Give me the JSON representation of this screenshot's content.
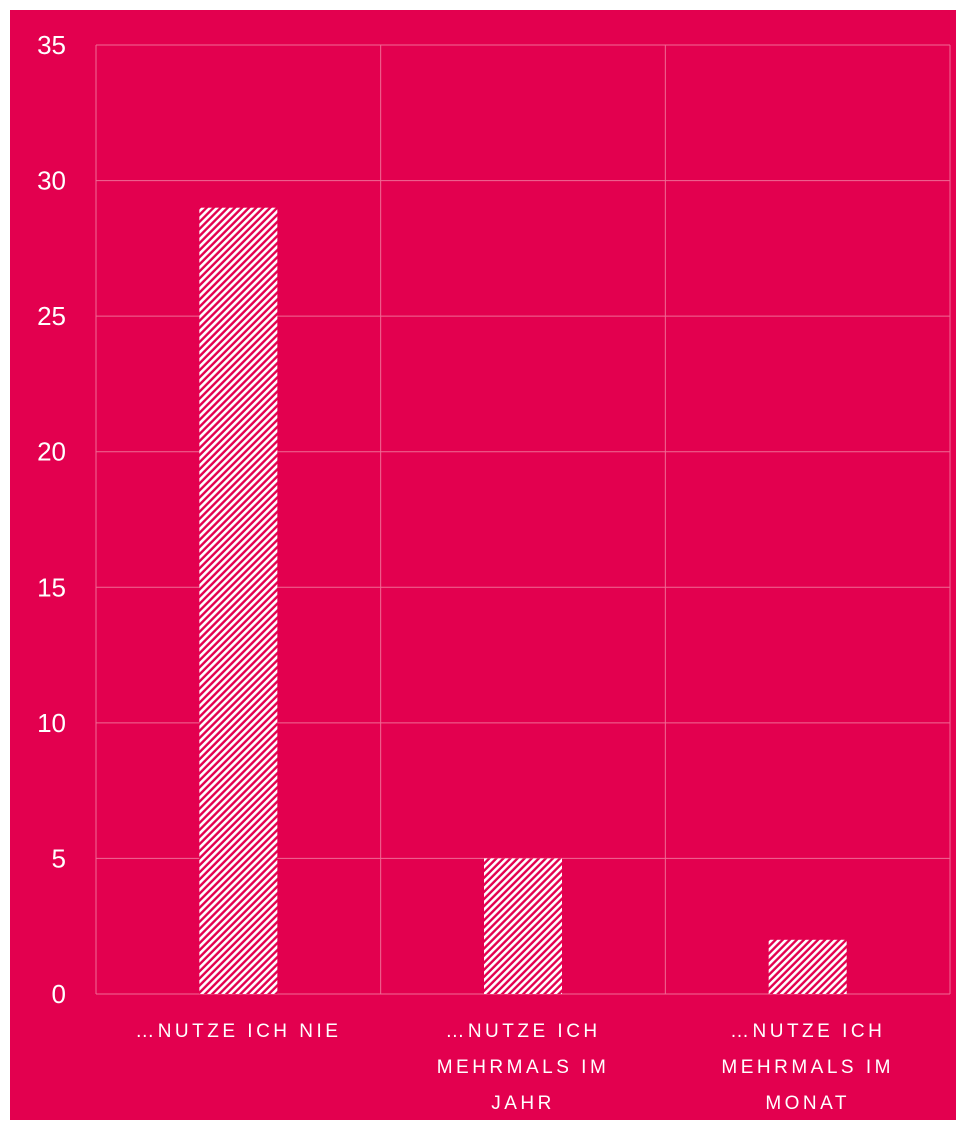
{
  "colors": {
    "background": "#E3004F",
    "bar_pattern": "#ffffff",
    "gridline": "#f06a94",
    "text": "#ffffff"
  },
  "chart_data": {
    "type": "bar",
    "categories": [
      [
        "…NUTZE ICH NIE"
      ],
      [
        "…NUTZE ICH",
        "MEHRMALS IM",
        "JAHR"
      ],
      [
        "…NUTZE ICH",
        "MEHRMALS IM",
        "MONAT"
      ]
    ],
    "values": [
      29,
      5,
      2
    ],
    "ylim": [
      0,
      35
    ],
    "yticks": [
      0,
      5,
      10,
      15,
      20,
      25,
      30,
      35
    ],
    "grid": true,
    "bar_fill": "diagonal-hatch",
    "title": "",
    "xlabel": "",
    "ylabel": ""
  }
}
